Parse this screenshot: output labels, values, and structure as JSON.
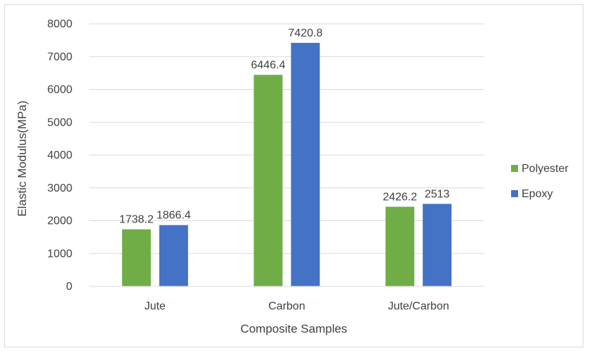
{
  "chart_data": {
    "type": "bar",
    "title": "",
    "xlabel": "Composite Samples",
    "ylabel": "Elastic Modulus(MPa)",
    "categories": [
      "Jute",
      "Carbon",
      "Jute/Carbon"
    ],
    "series": [
      {
        "name": "Polyester",
        "color": "#70ad47",
        "values": [
          1738.2,
          6446.4,
          2426.2
        ],
        "labels": [
          "1738.2",
          "6446.4",
          "2426.2"
        ]
      },
      {
        "name": "Epoxy",
        "color": "#4472c4",
        "values": [
          1866.4,
          7420.8,
          2513
        ],
        "labels": [
          "1866.4",
          "7420.8",
          "2513"
        ]
      }
    ],
    "ylim": [
      0,
      8000
    ],
    "yticks": [
      0,
      1000,
      2000,
      3000,
      4000,
      5000,
      6000,
      7000,
      8000
    ],
    "grid": true,
    "legend_position": "right"
  }
}
